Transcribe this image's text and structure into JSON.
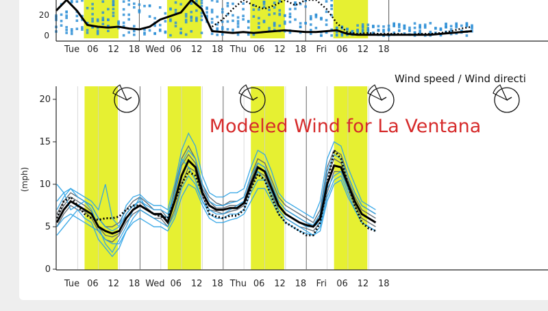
{
  "colors": {
    "highlight": "#e6f032",
    "member_blue": "#2ea3e6",
    "member_gray": "#56606a",
    "mean": "#000000",
    "title": "#d62b2b",
    "scatter": "#2e8fd6"
  },
  "chart_data": [
    {
      "type": "scatter",
      "title": "",
      "ylim": [
        0,
        40
      ],
      "y_ticks": [
        "20",
        "0"
      ],
      "x_ticks": [
        "Tue",
        "06",
        "12",
        "18",
        "Wed",
        "06",
        "12",
        "18",
        "Thu",
        "06",
        "12",
        "18",
        "Fri",
        "06",
        "12",
        "18"
      ],
      "mean_line": {
        "x": [
          0,
          2,
          4,
          6,
          8,
          10,
          12,
          14,
          16,
          18,
          20,
          22,
          24,
          26,
          28,
          30,
          32,
          34,
          36,
          38,
          40,
          42,
          44,
          46,
          48,
          50,
          52,
          54,
          56,
          58,
          60,
          62,
          64,
          66,
          68,
          70,
          72,
          74,
          76,
          78,
          80
        ],
        "y": [
          28,
          40,
          28,
          12,
          10,
          9,
          10,
          8,
          7,
          10,
          18,
          22,
          26,
          40,
          30,
          5,
          4,
          3,
          4,
          3,
          4,
          5,
          6,
          5,
          4,
          4,
          5,
          6,
          2,
          1,
          1,
          1,
          1,
          1,
          1,
          1,
          1,
          2,
          3,
          4,
          5
        ]
      },
      "spread_line": {
        "x": [
          30,
          32,
          34,
          36,
          38,
          40,
          42,
          44,
          46,
          48,
          50,
          52,
          54,
          56,
          58,
          60,
          62,
          64,
          66,
          68,
          70,
          72,
          74,
          76,
          78,
          80
        ],
        "y": [
          10,
          18,
          30,
          40,
          34,
          30,
          34,
          40,
          34,
          40,
          40,
          30,
          14,
          4,
          2,
          3,
          2,
          2,
          2,
          1,
          2,
          2,
          3,
          5,
          8,
          10
        ]
      }
    },
    {
      "type": "line",
      "title": "Modeled Wind for La Ventana",
      "corner_label": "Wind speed / Wind directi",
      "ylabel": "(mph)",
      "ylim": [
        0,
        21
      ],
      "y_ticks": [
        0,
        5,
        10,
        15,
        20
      ],
      "x_ticks": [
        "Tue",
        "06",
        "12",
        "18",
        "Wed",
        "06",
        "12",
        "18",
        "Thu",
        "06",
        "12",
        "18",
        "Fri",
        "06",
        "12",
        "18"
      ],
      "highlight_bands_hours": [
        [
          8,
          18
        ],
        [
          32,
          42
        ],
        [
          56,
          66
        ],
        [
          80,
          90
        ]
      ],
      "mean_series": {
        "name": "",
        "x": [
          0,
          2,
          4,
          6,
          8,
          10,
          12,
          14,
          16,
          18,
          20,
          22,
          24,
          26,
          28,
          30,
          32,
          34,
          36,
          38,
          40,
          42,
          44,
          46,
          48,
          50,
          52,
          54,
          56,
          58,
          60,
          62,
          64,
          66,
          68,
          70,
          72,
          74,
          76,
          78,
          80,
          82,
          84,
          86,
          88,
          90,
          92
        ],
        "y": [
          5.5,
          7,
          8,
          7.5,
          7,
          6.5,
          5,
          4.5,
          4.2,
          4.5,
          6,
          7,
          7.5,
          7,
          6.5,
          6.5,
          5.5,
          8,
          11,
          12.8,
          12,
          9,
          7.5,
          7,
          7,
          7.2,
          7.2,
          7.8,
          10,
          12,
          11.5,
          9.5,
          7.5,
          6.5,
          6,
          5.5,
          5.2,
          5,
          6,
          10,
          12.2,
          12,
          10,
          8,
          6.5,
          6,
          5.5
        ]
      },
      "baseline_series": {
        "name": "",
        "x": [
          0,
          2,
          4,
          6,
          8,
          10,
          12,
          14,
          16,
          18,
          20,
          22,
          24,
          26,
          28,
          30,
          32,
          34,
          36,
          38,
          40,
          42,
          44,
          46,
          48,
          50,
          52,
          54,
          56,
          58,
          60,
          62,
          64,
          66,
          68,
          70,
          72,
          74,
          76,
          78,
          80,
          82,
          84,
          86,
          88,
          90,
          92
        ],
        "y": [
          6,
          8,
          8.5,
          7.5,
          6.5,
          6,
          5.8,
          6,
          6,
          6.2,
          7,
          7.5,
          7.5,
          7,
          6.5,
          6.2,
          6,
          8,
          10,
          11.5,
          11,
          9,
          6.5,
          6.2,
          6,
          6.3,
          6.3,
          7,
          9.5,
          11.2,
          10.5,
          8.5,
          6.5,
          5.5,
          5,
          4.5,
          4,
          4,
          5.5,
          10,
          14,
          13,
          10,
          7.5,
          5.5,
          4.8,
          4.5
        ]
      },
      "member_series": [
        {
          "color": "member_gray",
          "y": [
            6,
            7.5,
            8.5,
            8,
            7.5,
            6.8,
            5,
            4,
            3.8,
            4.2,
            6.5,
            7.5,
            8,
            7.2,
            6.5,
            6.2,
            5.8,
            8.8,
            12.2,
            13.5,
            12.5,
            9.5,
            8,
            7.2,
            7.2,
            7.5,
            7.5,
            8,
            10.5,
            12.5,
            12,
            10,
            8,
            7,
            6.5,
            6,
            5.5,
            5,
            6.5,
            11,
            13,
            12.5,
            10.5,
            8.5,
            7,
            6.5,
            6
          ]
        },
        {
          "color": "member_gray",
          "y": [
            5,
            6.5,
            7.5,
            7,
            6.8,
            6,
            4.5,
            3.5,
            3.2,
            4,
            5.5,
            6.5,
            7,
            6.5,
            6,
            6,
            5,
            7,
            10,
            12,
            11.5,
            8.5,
            7,
            6.8,
            6.5,
            6.8,
            7,
            7.5,
            9.5,
            11.5,
            11,
            9,
            7,
            6,
            5.5,
            5,
            4.8,
            4.5,
            5.5,
            9,
            11.5,
            11.5,
            9.5,
            7.5,
            6,
            5.5,
            5
          ]
        },
        {
          "color": "member_gray",
          "y": [
            6.5,
            8,
            9,
            8.5,
            8,
            7.5,
            6,
            5,
            5,
            5.5,
            7,
            8,
            8.5,
            7.8,
            7,
            7,
            6,
            9.5,
            13,
            14.5,
            13,
            10,
            8.5,
            7.8,
            7.5,
            8,
            8,
            8.5,
            11,
            13,
            12.5,
            10.5,
            8.5,
            7.5,
            7,
            6.5,
            6,
            5.5,
            7,
            12,
            14,
            13.5,
            11,
            9,
            7.5,
            7,
            6.5
          ]
        },
        {
          "color": "member_blue",
          "y": [
            10,
            9,
            7,
            7.5,
            8,
            7,
            5,
            3,
            2,
            3.5,
            5,
            7,
            8.5,
            7,
            6.5,
            6.5,
            6,
            9,
            13,
            12,
            10.5,
            8,
            7,
            6.5,
            6.5,
            7,
            7.5,
            8,
            10,
            11.5,
            10.5,
            9,
            7.5,
            6.5,
            6,
            5.5,
            5,
            5,
            5.5,
            9.5,
            11,
            11.5,
            9.5,
            8,
            6.5,
            6,
            5.5
          ]
        },
        {
          "color": "member_blue",
          "y": [
            4,
            5,
            6,
            7,
            6,
            5.5,
            3.5,
            2.5,
            1.5,
            2.5,
            4.5,
            6,
            7,
            6.5,
            6,
            5.5,
            5,
            6.5,
            9.5,
            11,
            10,
            8,
            6.5,
            6,
            6,
            6.5,
            6.5,
            7,
            9,
            10.5,
            10.5,
            8.5,
            7,
            6,
            5.5,
            5,
            4.5,
            4,
            5,
            8.5,
            10.5,
            11,
            9,
            7,
            5.5,
            5,
            4.5
          ]
        },
        {
          "color": "member_blue",
          "y": [
            7,
            8.5,
            9.5,
            9,
            8.5,
            8,
            7,
            10,
            6,
            5,
            7.5,
            8.5,
            8.8,
            8,
            7.5,
            7.5,
            7,
            10,
            14,
            16,
            14.5,
            11,
            9,
            8.5,
            8.5,
            9,
            9,
            9.5,
            12,
            14,
            13.5,
            11.5,
            9,
            8,
            7.5,
            7,
            6.5,
            6,
            8,
            13,
            15,
            14.5,
            12,
            10,
            8,
            7.5,
            7
          ]
        },
        {
          "color": "member_blue",
          "y": [
            5,
            6,
            6.5,
            6,
            5.5,
            5,
            4.5,
            3.5,
            3,
            3,
            4.5,
            5.5,
            6,
            5.5,
            5,
            5,
            4.5,
            6,
            8.5,
            10,
            9.5,
            7.5,
            6,
            5.5,
            5.5,
            5.8,
            6,
            6.5,
            8,
            9.5,
            9.5,
            8,
            6.5,
            5.5,
            5,
            4.5,
            4.2,
            4,
            4.5,
            8,
            10,
            10.5,
            8.5,
            7,
            5.5,
            5,
            4.5
          ]
        },
        {
          "color": "member_blue",
          "y": [
            8,
            9,
            9.5,
            8.5,
            8,
            7.5,
            6,
            5,
            4.5,
            5,
            6.5,
            7.5,
            8,
            7.5,
            7,
            7,
            6.5,
            9,
            12.5,
            14,
            13,
            10,
            8,
            7.5,
            7.5,
            7.8,
            8,
            8.5,
            11,
            12.5,
            12,
            10,
            8,
            7,
            6.5,
            6,
            5.5,
            5.2,
            6.5,
            11.5,
            13.5,
            13,
            11,
            9,
            7.5,
            7,
            6.5
          ]
        }
      ]
    }
  ]
}
